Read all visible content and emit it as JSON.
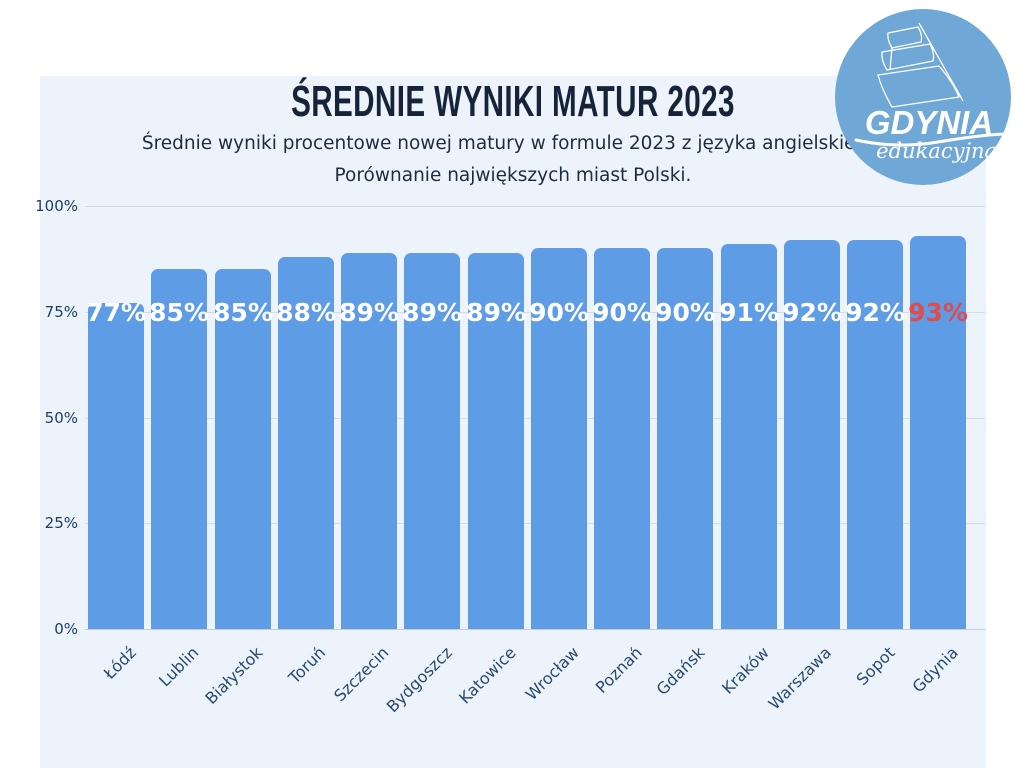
{
  "header": {
    "title": "ŚREDNIE WYNIKI MATUR 2023",
    "subtitle_line1": "Średnie wyniki procentowe nowej matury w formule 2023 z języka angielskiego.",
    "subtitle_line2": "Porównanie największych miast Polski."
  },
  "logo": {
    "name": "GDYNIA",
    "tagline": "edukacyjna",
    "icon": "sailing-ship-icon",
    "circle_color": "#6fa7d6",
    "text_color": "#ffffff"
  },
  "chart_data": {
    "type": "bar",
    "title": "ŚREDNIE WYNIKI MATUR 2023",
    "xlabel": "",
    "ylabel": "",
    "categories": [
      "Łódź",
      "Lublin",
      "Białystok",
      "Toruń",
      "Szczecin",
      "Bydgoszcz",
      "Katowice",
      "Wrocław",
      "Poznań",
      "Gdańsk",
      "Kraków",
      "Warszawa",
      "Sopot",
      "Gdynia"
    ],
    "values": [
      77,
      85,
      85,
      88,
      89,
      89,
      89,
      90,
      90,
      90,
      91,
      92,
      92,
      93
    ],
    "value_labels": [
      "77%",
      "85%",
      "85%",
      "88%",
      "89%",
      "89%",
      "89%",
      "90%",
      "90%",
      "90%",
      "91%",
      "92%",
      "92%",
      "93%"
    ],
    "unit": "%",
    "ylim": [
      0,
      100
    ],
    "y_ticks": [
      {
        "value": 0,
        "label": "0%"
      },
      {
        "value": 25,
        "label": "25%"
      },
      {
        "value": 50,
        "label": "50%"
      },
      {
        "value": 75,
        "label": "75%"
      },
      {
        "value": 100,
        "label": "100%"
      }
    ],
    "grid": true,
    "legend": false,
    "bar_color": "#5f9ce6",
    "value_label_color": "#ffffff",
    "highlight_category": "Gdynia",
    "highlight_value_color": "#e04b4b",
    "background_color": "#edf3fb",
    "gridline_color": "#d7dce2",
    "axis_label_color": "#27496e"
  }
}
